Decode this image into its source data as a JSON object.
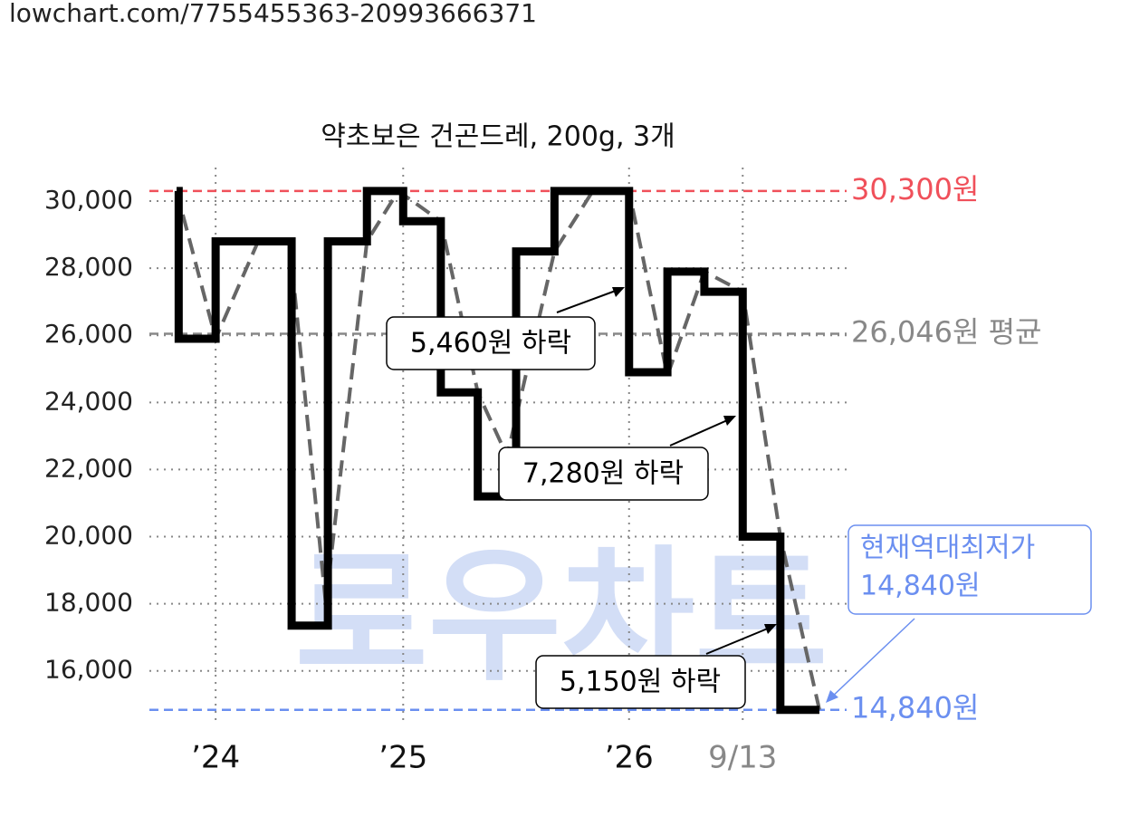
{
  "header": {
    "url": "lowchart.com/7755455363-20993666371"
  },
  "chart_data": {
    "type": "line",
    "title": "약초보은 건곤드레, 200g, 3개",
    "watermark": "로우차트",
    "xlim": [
      0,
      100
    ],
    "xticks": [
      {
        "value": 9.5,
        "label": "’24"
      },
      {
        "value": 36.4,
        "label": "’25"
      },
      {
        "value": 68.8,
        "label": "’26"
      },
      {
        "value": 85.1,
        "label": "9/13"
      }
    ],
    "ylim": [
      14400,
      31000
    ],
    "yticks": [
      {
        "value": 16000,
        "label": "16,000"
      },
      {
        "value": 18000,
        "label": "18,000"
      },
      {
        "value": 20000,
        "label": "20,000"
      },
      {
        "value": 22000,
        "label": "22,000"
      },
      {
        "value": 24000,
        "label": "24,000"
      },
      {
        "value": 26000,
        "label": "26,000"
      },
      {
        "value": 28000,
        "label": "28,000"
      },
      {
        "value": 30000,
        "label": "30,000"
      }
    ],
    "grid": true,
    "series": [
      {
        "style": "step",
        "color": "#000000",
        "x": [
          3.9,
          4.2,
          9.5,
          20.4,
          25.6,
          31.2,
          36.4,
          41.8,
          47.1,
          52.6,
          58.1,
          68.8,
          74.3,
          79.6,
          85.1,
          90.5,
          96.1
        ],
        "values": [
          30300,
          25900,
          28800,
          17350,
          28800,
          30300,
          29400,
          24300,
          21200,
          28500,
          30300,
          24900,
          27900,
          27300,
          20000,
          14840,
          14840
        ]
      },
      {
        "style": "dashed",
        "color": "#666666",
        "x": [
          3.9,
          9.5,
          15.6,
          20.1,
          25.3,
          31.2,
          35.7,
          41.8,
          47.1,
          51.3,
          58.1,
          63.6,
          68.8,
          74.3,
          79.6,
          85.1,
          90.5,
          96.1
        ],
        "values": [
          30300,
          25900,
          28800,
          28800,
          18000,
          28800,
          30300,
          29400,
          24300,
          22400,
          28500,
          30300,
          30300,
          24800,
          27900,
          27300,
          20000,
          14840
        ]
      }
    ],
    "reference_lines": [
      {
        "value": 30300,
        "label": "30,300원",
        "color": "#f0505a"
      },
      {
        "value": 26046,
        "label": "26,046원 평균",
        "color": "#888888"
      },
      {
        "value": 14840,
        "label": "14,840원",
        "color": "#6b8ff0"
      }
    ],
    "annotations": [
      "5,460원 하락",
      "7,280원 하락",
      "5,150원 하락"
    ],
    "callout": [
      "현재역대최저가",
      "14,840원"
    ]
  }
}
